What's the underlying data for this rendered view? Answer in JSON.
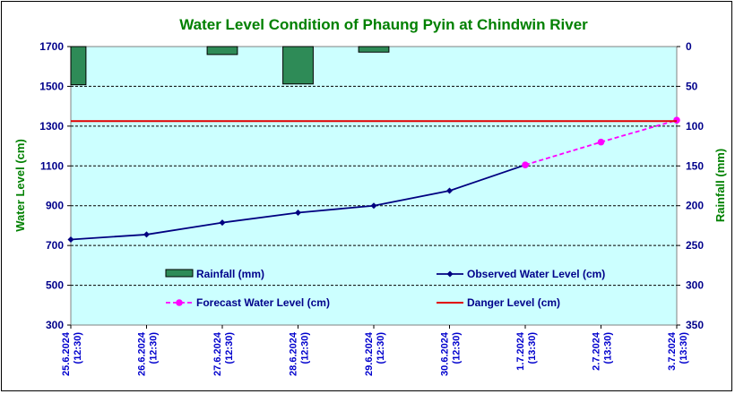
{
  "chart_data": {
    "type": "line",
    "title": "Water Level Condition of Phaung Pyin at Chindwin River",
    "ylabel": "Water Level (cm)",
    "y2label": "Rainfall (mm)",
    "ylim": [
      300,
      1700
    ],
    "y_ticks": [
      "1700",
      "1500",
      "1300",
      "1100",
      "900",
      "700",
      "500",
      "300"
    ],
    "y2lim": [
      0,
      350
    ],
    "y2_ticks": [
      "0",
      "50",
      "100",
      "150",
      "200",
      "250",
      "300",
      "350"
    ],
    "grid": true,
    "categories": [
      [
        "25.6.2024",
        "(12:30)"
      ],
      [
        "26.6.2024",
        "(12:30)"
      ],
      [
        "27.6.2024",
        "(12:30)"
      ],
      [
        "28.6.2024",
        "(12:30)"
      ],
      [
        "29.6.2024",
        "(12:30)"
      ],
      [
        "30.6.2024",
        "(12:30)"
      ],
      [
        "1.7.2024",
        "(13:30)"
      ],
      [
        "2.7.2024",
        "(13:30)"
      ],
      [
        "3.7.2024",
        "(13:30)"
      ]
    ],
    "series": [
      {
        "name": "Rainfall (mm)",
        "kind": "bar",
        "axis": "right",
        "color": "#2e8b57",
        "values": [
          48,
          0,
          10,
          47,
          7,
          0,
          0,
          0,
          0
        ]
      },
      {
        "name": "Observed Water Level (cm)",
        "kind": "line",
        "axis": "left",
        "color": "#000080",
        "marker": "diamond",
        "values": [
          730,
          755,
          815,
          865,
          900,
          975,
          1105,
          null,
          null
        ]
      },
      {
        "name": "Forecast Water Level (cm)",
        "kind": "line",
        "axis": "left",
        "color": "#ff00ff",
        "marker": "circle",
        "dashed": true,
        "values": [
          null,
          null,
          null,
          null,
          null,
          null,
          1105,
          1220,
          1330
        ]
      },
      {
        "name": "Danger Level (cm)",
        "kind": "line",
        "axis": "left",
        "color": "#e00000",
        "values": [
          1325,
          1325,
          1325,
          1325,
          1325,
          1325,
          1325,
          1325,
          1325
        ]
      }
    ],
    "legend": [
      "Rainfall (mm)",
      "Observed Water Level (cm)",
      "Forecast Water Level (cm)",
      "Danger Level (cm)"
    ]
  }
}
